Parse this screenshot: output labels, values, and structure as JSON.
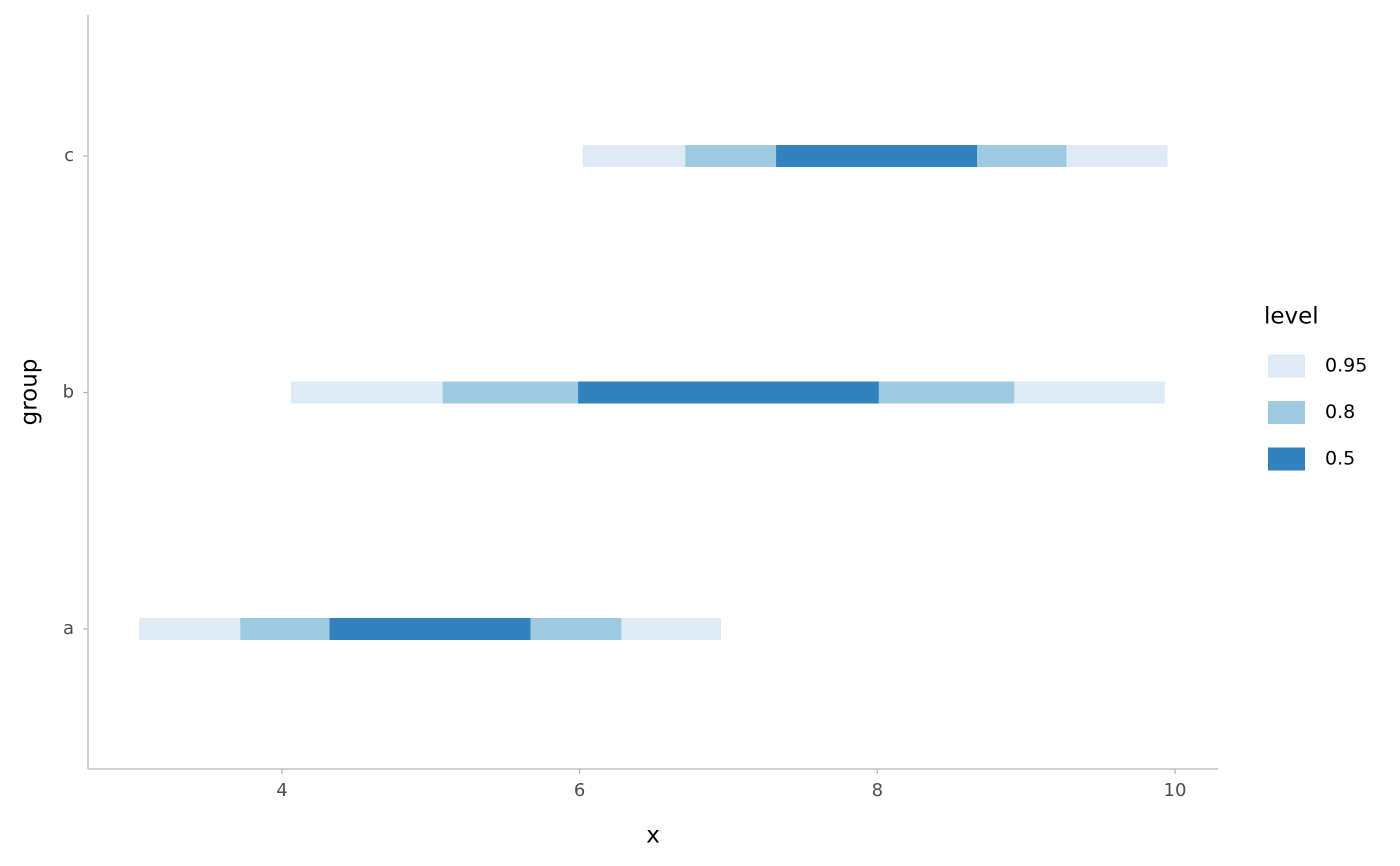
{
  "chart_data": {
    "type": "interval",
    "x_label": "x",
    "y_label": "group",
    "categories": [
      "a",
      "b",
      "c"
    ],
    "xlim": [
      2.697,
      10.289
    ],
    "xticks": [
      4,
      6,
      8,
      10
    ],
    "legend_title": "level",
    "legend_position": "right",
    "series": [
      {
        "name": "0.95",
        "color": "#deebf7",
        "lower": [
          3.04,
          4.06,
          6.02
        ],
        "upper": [
          6.95,
          9.93,
          9.95
        ]
      },
      {
        "name": "0.8",
        "color": "#9ecae1",
        "lower": [
          3.72,
          5.08,
          6.71
        ],
        "upper": [
          6.28,
          8.92,
          9.27
        ]
      },
      {
        "name": "0.5",
        "color": "#3182bd",
        "lower": [
          4.32,
          5.99,
          7.32
        ],
        "upper": [
          5.67,
          8.01,
          8.67
        ]
      }
    ]
  }
}
